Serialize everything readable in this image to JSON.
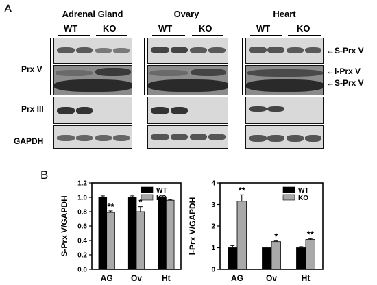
{
  "panel_a": {
    "letter": "A",
    "tissues": [
      {
        "name": "Adrenal Gland",
        "wt": "WT",
        "ko": "KO"
      },
      {
        "name": "Ovary",
        "wt": "WT",
        "ko": "KO"
      },
      {
        "name": "Heart",
        "wt": "WT",
        "ko": "KO"
      }
    ],
    "row_labels": {
      "prxv": "Prx V",
      "prxiii": "Prx III",
      "gapdh": "GAPDH"
    },
    "arrow_labels": {
      "s_prx_v_top": "S-Prx V",
      "l_prx_v": "l-Prx V",
      "s_prx_v_bottom": "S-Prx V"
    }
  },
  "panel_b": {
    "letter": "B"
  },
  "chart_data": [
    {
      "type": "bar",
      "categories": [
        "AG",
        "Ov",
        "Ht"
      ],
      "ylabel": "S-Prx V/GAPDH",
      "ylim": [
        0,
        1.2
      ],
      "yticks": [
        "0.0",
        "0.2",
        "0.4",
        "0.6",
        "0.8",
        "1.0",
        "1.2"
      ],
      "legend": "top-right",
      "series": [
        {
          "name": "WT",
          "color": "#000000",
          "values": [
            1.0,
            1.0,
            1.0
          ],
          "errors": [
            0.02,
            0.02,
            0.02
          ]
        },
        {
          "name": "KO",
          "color": "#a9a9a9",
          "values": [
            0.79,
            0.8,
            0.96
          ],
          "errors": [
            0.02,
            0.07,
            0.01
          ]
        }
      ],
      "significance": [
        {
          "category": "AG",
          "series": "KO",
          "label": "**"
        },
        {
          "category": "Ov",
          "series": "KO",
          "label": "*"
        }
      ]
    },
    {
      "type": "bar",
      "categories": [
        "AG",
        "Ov",
        "Ht"
      ],
      "ylabel": "l-Prx V/GAPDH",
      "ylim": [
        0,
        4
      ],
      "yticks": [
        "0",
        "1",
        "2",
        "3",
        "4"
      ],
      "legend": "top-right",
      "series": [
        {
          "name": "WT",
          "color": "#000000",
          "values": [
            1.0,
            1.0,
            1.0
          ],
          "errors": [
            0.1,
            0.03,
            0.05
          ]
        },
        {
          "name": "KO",
          "color": "#a9a9a9",
          "values": [
            3.15,
            1.28,
            1.38
          ],
          "errors": [
            0.3,
            0.03,
            0.04
          ]
        }
      ],
      "significance": [
        {
          "category": "AG",
          "series": "KO",
          "label": "**"
        },
        {
          "category": "Ov",
          "series": "KO",
          "label": "*"
        },
        {
          "category": "Ht",
          "series": "KO",
          "label": "**"
        }
      ]
    }
  ]
}
